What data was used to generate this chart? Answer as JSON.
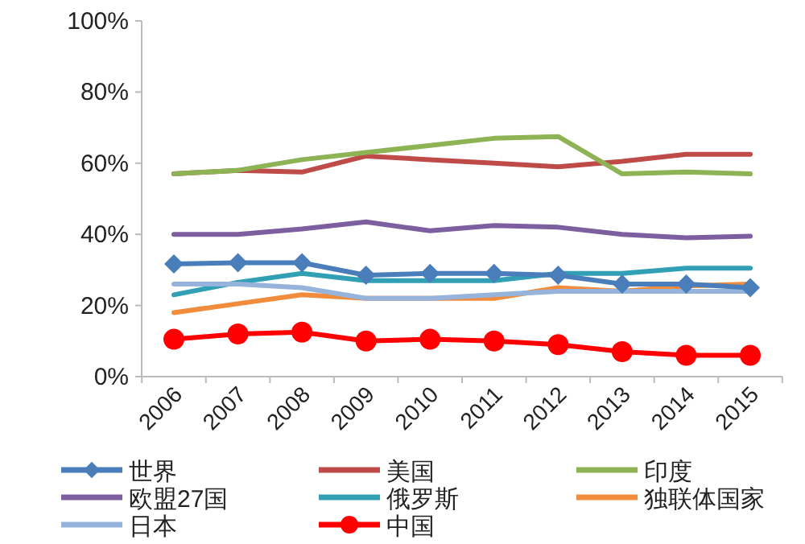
{
  "chart_data": {
    "type": "line",
    "categories": [
      "2006",
      "2007",
      "2008",
      "2009",
      "2010",
      "2011",
      "2012",
      "2013",
      "2014",
      "2015"
    ],
    "ylim": [
      0,
      100
    ],
    "yticks": [
      {
        "value": 0,
        "label": "0%"
      },
      {
        "value": 20,
        "label": "20%"
      },
      {
        "value": 40,
        "label": "40%"
      },
      {
        "value": 60,
        "label": "60%"
      },
      {
        "value": 80,
        "label": "80%"
      },
      {
        "value": 100,
        "label": "100%"
      }
    ],
    "grid": false,
    "legend": "bottom",
    "series": [
      {
        "name": "世界",
        "color": "#4a7ebb",
        "marker": "diamond",
        "values": [
          31.7,
          32,
          32,
          28.5,
          29,
          29,
          28.5,
          26,
          26,
          25
        ]
      },
      {
        "name": "美国",
        "color": "#be4b48",
        "marker": "none",
        "values": [
          57,
          58,
          57.5,
          62,
          61,
          60,
          59,
          60.5,
          62.5,
          62.5
        ]
      },
      {
        "name": "印度",
        "color": "#8db354",
        "marker": "none",
        "values": [
          57,
          58,
          61,
          63,
          65,
          67,
          67.5,
          57,
          57.5,
          57
        ]
      },
      {
        "name": "欧盟27国",
        "color": "#7d5fa0",
        "marker": "none",
        "values": [
          40,
          40,
          41.5,
          43.5,
          41,
          42.5,
          42,
          40,
          39,
          39.5
        ]
      },
      {
        "name": "俄罗斯",
        "color": "#31a0b5",
        "marker": "none",
        "values": [
          23,
          26.5,
          29,
          27,
          27,
          27,
          29,
          29,
          30.5,
          30.5
        ]
      },
      {
        "name": "独联体国家",
        "color": "#f18c3c",
        "marker": "none",
        "values": [
          18,
          20.5,
          23,
          22,
          22,
          22,
          25,
          24,
          25.5,
          26
        ]
      },
      {
        "name": "日本",
        "color": "#96b3dc",
        "marker": "none",
        "values": [
          26,
          26,
          25,
          22,
          22,
          23,
          24,
          24,
          24,
          24
        ]
      },
      {
        "name": "中国",
        "color": "#ff0000",
        "marker": "circle",
        "values": [
          10.5,
          12,
          12.5,
          10,
          10.5,
          10,
          9,
          7,
          6,
          6
        ]
      }
    ]
  }
}
